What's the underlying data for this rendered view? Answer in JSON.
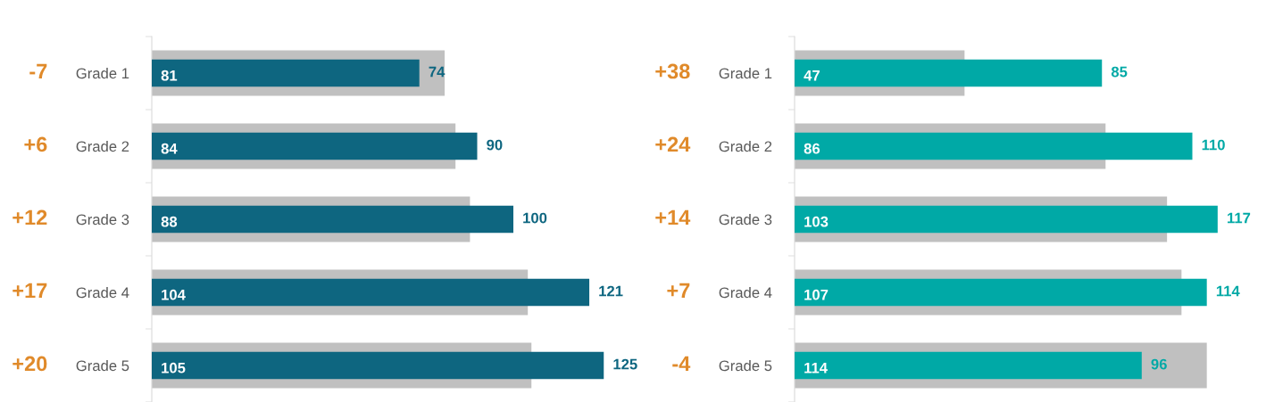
{
  "chart_data": [
    {
      "type": "bar",
      "orientation": "horizontal",
      "categories": [
        "Grade 1",
        "Grade 2",
        "Grade 3",
        "Grade 4",
        "Grade 5"
      ],
      "series": [
        {
          "color": "#c0c0c0",
          "values": [
            81,
            84,
            88,
            104,
            105
          ]
        },
        {
          "color": "#0e6680",
          "values": [
            74,
            90,
            100,
            121,
            125
          ]
        }
      ],
      "data_labels": true,
      "tick_labels": "y",
      "grid": false,
      "legend": false,
      "annotations": [
        "-7",
        "+6",
        "+12",
        "+17",
        "+20"
      ]
    },
    {
      "type": "bar",
      "orientation": "horizontal",
      "categories": [
        "Grade 1",
        "Grade 2",
        "Grade 3",
        "Grade 4",
        "Grade 5"
      ],
      "series": [
        {
          "color": "#c0c0c0",
          "values": [
            47,
            86,
            103,
            107,
            114
          ]
        },
        {
          "color": "#00a9a6",
          "values": [
            85,
            110,
            117,
            114,
            96
          ]
        }
      ],
      "data_labels": true,
      "tick_labels": "y",
      "grid": false,
      "legend": false,
      "annotations": [
        "+38",
        "+24",
        "+14",
        "+7",
        "-4"
      ]
    }
  ]
}
